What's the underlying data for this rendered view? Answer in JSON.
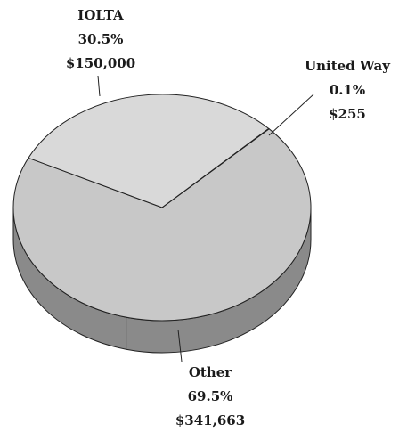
{
  "chart_data": {
    "type": "pie",
    "title": "",
    "slices": [
      {
        "label": "IOLTA",
        "percent": "30.5%",
        "amount": "$150,000",
        "value": 150000,
        "color": "#d9d9d9"
      },
      {
        "label": "United Way",
        "percent": "0.1%",
        "amount": "$255",
        "value": 255,
        "color": "#d9d9d9"
      },
      {
        "label": "Other",
        "percent": "69.5%",
        "amount": "$341,663",
        "value": 341663,
        "color": "#c8c8c8"
      }
    ],
    "side_color": "#8a8a8a",
    "legend": "none"
  }
}
